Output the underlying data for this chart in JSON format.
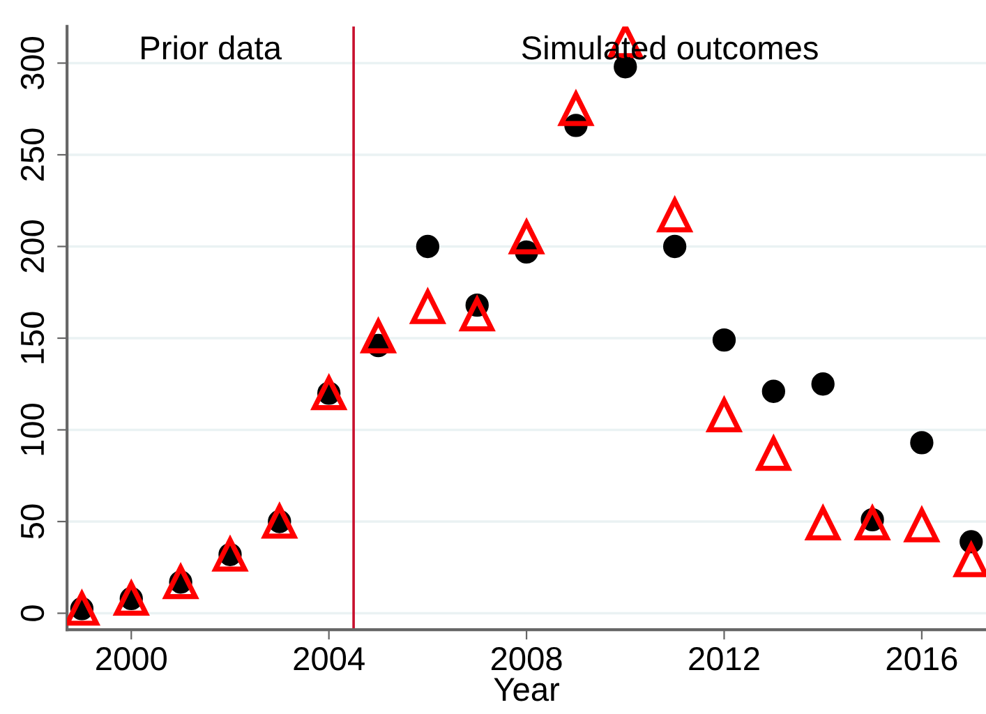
{
  "chart_data": {
    "type": "scatter",
    "xlabel": "Year",
    "x": [
      1999,
      2000,
      2001,
      2002,
      2003,
      2004,
      2005,
      2006,
      2007,
      2008,
      2009,
      2010,
      2011,
      2012,
      2013,
      2014,
      2015,
      2016,
      2017
    ],
    "series": [
      {
        "color": "#000000",
        "marker": "circle",
        "values": [
          2.5,
          8,
          17,
          32,
          50,
          120,
          146,
          200,
          168,
          197,
          266,
          298,
          200,
          149,
          121,
          125,
          51,
          93,
          39
        ]
      },
      {
        "color": "#ff0000",
        "marker": "triangle",
        "values": [
          2.5,
          8,
          17,
          32,
          50,
          120,
          151,
          167,
          163,
          205,
          275,
          312,
          217,
          108,
          87,
          49,
          49,
          48,
          29
        ]
      }
    ],
    "xlim": [
      1998.7,
      2017.3
    ],
    "ylim": [
      -9,
      320
    ],
    "xticks": [
      2000,
      2004,
      2008,
      2012,
      2016
    ],
    "yticks": [
      0,
      50,
      100,
      150,
      200,
      250,
      300
    ],
    "grid": "y",
    "ref_lines": [
      {
        "axis": "x",
        "value": 2004.5,
        "color": "#c8102e"
      }
    ],
    "annotations": [
      "Prior data",
      "Simulated outcomes"
    ]
  }
}
